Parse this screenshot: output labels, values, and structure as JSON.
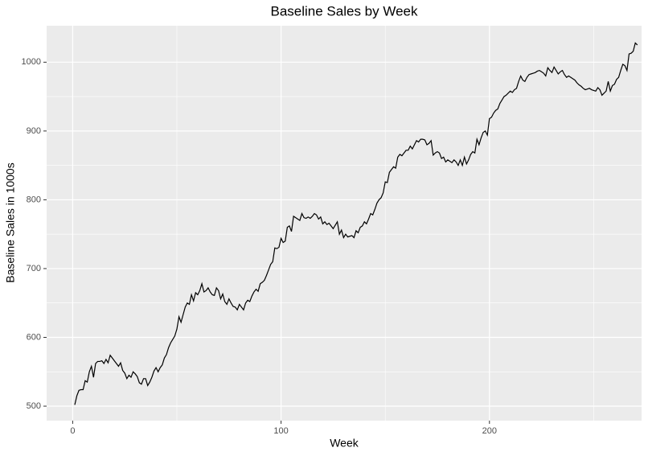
{
  "chart_data": {
    "type": "line",
    "title": "Baseline Sales by Week",
    "x_label": "Week",
    "y_label": "Baseline Sales in 1000s",
    "color": "#000000",
    "panel_color": "#ebebeb",
    "grid": true,
    "xlim": [
      -12.5,
      273
    ],
    "ylim": [
      479,
      1053
    ],
    "xticks": [
      0,
      100,
      200
    ],
    "yticks": [
      500,
      600,
      700,
      800,
      900,
      1000
    ],
    "xminor": [
      50,
      150,
      250
    ],
    "yminor": [
      550,
      650,
      750,
      850,
      950
    ],
    "x": [
      1,
      2,
      3,
      4,
      5,
      6,
      7,
      8,
      9,
      10,
      11,
      12,
      13,
      14,
      15,
      16,
      17,
      18,
      19,
      20,
      21,
      22,
      23,
      24,
      25,
      26,
      27,
      28,
      29,
      30,
      31,
      32,
      33,
      34,
      35,
      36,
      37,
      38,
      39,
      40,
      41,
      42,
      43,
      44,
      45,
      46,
      47,
      48,
      49,
      50,
      51,
      52,
      53,
      54,
      55,
      56,
      57,
      58,
      59,
      60,
      61,
      62,
      63,
      64,
      65,
      66,
      67,
      68,
      69,
      70,
      71,
      72,
      73,
      74,
      75,
      76,
      77,
      78,
      79,
      80,
      81,
      82,
      83,
      84,
      85,
      86,
      87,
      88,
      89,
      90,
      91,
      92,
      93,
      94,
      95,
      96,
      97,
      98,
      99,
      100,
      101,
      102,
      103,
      104,
      105,
      106,
      107,
      108,
      109,
      110,
      111,
      112,
      113,
      114,
      115,
      116,
      117,
      118,
      119,
      120,
      121,
      122,
      123,
      124,
      125,
      126,
      127,
      128,
      129,
      130,
      131,
      132,
      133,
      134,
      135,
      136,
      137,
      138,
      139,
      140,
      141,
      142,
      143,
      144,
      145,
      146,
      147,
      148,
      149,
      150,
      151,
      152,
      153,
      154,
      155,
      156,
      157,
      158,
      159,
      160,
      161,
      162,
      163,
      164,
      165,
      166,
      167,
      168,
      169,
      170,
      171,
      172,
      173,
      174,
      175,
      176,
      177,
      178,
      179,
      180,
      181,
      182,
      183,
      184,
      185,
      186,
      187,
      188,
      189,
      190,
      191,
      192,
      193,
      194,
      195,
      196,
      197,
      198,
      199,
      200,
      201,
      202,
      203,
      204,
      205,
      206,
      207,
      208,
      209,
      210,
      211,
      212,
      213,
      214,
      215,
      216,
      217,
      218,
      219,
      220,
      221,
      222,
      223,
      224,
      225,
      226,
      227,
      228,
      229,
      230,
      231,
      232,
      233,
      234,
      235,
      236,
      237,
      238,
      239,
      240,
      241,
      242,
      243,
      244,
      245,
      246,
      247,
      248,
      249,
      250,
      251,
      252,
      253,
      254,
      255,
      256,
      257,
      258,
      259,
      260,
      261,
      262,
      263,
      264,
      265,
      266,
      267,
      268,
      269,
      270,
      271
    ],
    "values": [
      502,
      515,
      523,
      524,
      524,
      537,
      535,
      550,
      558,
      542,
      562,
      565,
      565,
      566,
      562,
      568,
      563,
      574,
      570,
      566,
      562,
      558,
      563,
      552,
      548,
      540,
      545,
      542,
      550,
      547,
      543,
      534,
      532,
      540,
      540,
      530,
      535,
      542,
      551,
      556,
      550,
      556,
      560,
      570,
      575,
      585,
      592,
      597,
      602,
      612,
      630,
      622,
      633,
      644,
      650,
      648,
      662,
      653,
      665,
      662,
      668,
      678,
      666,
      668,
      672,
      666,
      662,
      661,
      672,
      668,
      656,
      663,
      652,
      648,
      656,
      650,
      645,
      644,
      640,
      648,
      644,
      640,
      650,
      654,
      652,
      660,
      666,
      670,
      667,
      678,
      680,
      683,
      690,
      698,
      706,
      710,
      730,
      729,
      731,
      744,
      738,
      740,
      760,
      762,
      754,
      776,
      774,
      772,
      770,
      780,
      774,
      773,
      775,
      773,
      776,
      780,
      778,
      772,
      775,
      765,
      768,
      764,
      766,
      762,
      758,
      763,
      768,
      750,
      756,
      745,
      750,
      746,
      747,
      748,
      745,
      755,
      752,
      760,
      762,
      768,
      765,
      772,
      780,
      778,
      786,
      795,
      800,
      803,
      810,
      826,
      825,
      840,
      844,
      848,
      846,
      862,
      866,
      864,
      868,
      872,
      872,
      878,
      874,
      880,
      886,
      884,
      888,
      888,
      887,
      880,
      882,
      886,
      865,
      868,
      870,
      868,
      860,
      862,
      855,
      858,
      856,
      854,
      858,
      855,
      850,
      858,
      850,
      862,
      852,
      858,
      866,
      870,
      868,
      888,
      880,
      890,
      898,
      900,
      894,
      918,
      920,
      926,
      930,
      932,
      940,
      945,
      950,
      952,
      955,
      958,
      956,
      960,
      962,
      972,
      980,
      974,
      972,
      978,
      982,
      983,
      984,
      985,
      987,
      988,
      986,
      984,
      980,
      992,
      988,
      985,
      993,
      988,
      983,
      986,
      988,
      982,
      978,
      980,
      978,
      976,
      974,
      970,
      967,
      965,
      962,
      960,
      961,
      962,
      960,
      959,
      958,
      963,
      960,
      952,
      955,
      958,
      972,
      958,
      966,
      968,
      975,
      978,
      988,
      997,
      995,
      988,
      1012,
      1013,
      1016,
      1028,
      1025
    ]
  }
}
